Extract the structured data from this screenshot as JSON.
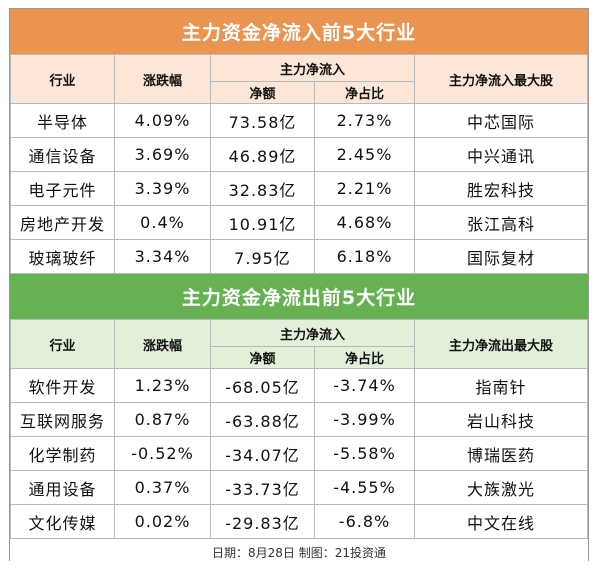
{
  "inflow": {
    "title": "主力资金净流入前5大行业",
    "headers": {
      "industry": "行业",
      "change": "涨跌幅",
      "main_flow": "主力净流入",
      "net_amount": "净额",
      "net_ratio": "净占比",
      "top_stock": "主力净流入最大股"
    },
    "rows": [
      {
        "industry": "半导体",
        "change": "4.09%",
        "net_amount": "73.58亿",
        "net_ratio": "2.73%",
        "top_stock": "中芯国际"
      },
      {
        "industry": "通信设备",
        "change": "3.69%",
        "net_amount": "46.89亿",
        "net_ratio": "2.45%",
        "top_stock": "中兴通讯"
      },
      {
        "industry": "电子元件",
        "change": "3.39%",
        "net_amount": "32.83亿",
        "net_ratio": "2.21%",
        "top_stock": "胜宏科技"
      },
      {
        "industry": "房地产开发",
        "change": "0.4%",
        "net_amount": "10.91亿",
        "net_ratio": "4.68%",
        "top_stock": "张江高科"
      },
      {
        "industry": "玻璃玻纤",
        "change": "3.34%",
        "net_amount": "7.95亿",
        "net_ratio": "6.18%",
        "top_stock": "国际复材"
      }
    ]
  },
  "outflow": {
    "title": "主力资金净流出前5大行业",
    "headers": {
      "industry": "行业",
      "change": "涨跌幅",
      "main_flow": "主力净流入",
      "net_amount": "净额",
      "net_ratio": "净占比",
      "top_stock": "主力净流出最大股"
    },
    "rows": [
      {
        "industry": "软件开发",
        "change": "1.23%",
        "net_amount": "-68.05亿",
        "net_ratio": "-3.74%",
        "top_stock": "指南针"
      },
      {
        "industry": "互联网服务",
        "change": "0.87%",
        "net_amount": "-63.88亿",
        "net_ratio": "-3.99%",
        "top_stock": "岩山科技"
      },
      {
        "industry": "化学制药",
        "change": "-0.52%",
        "net_amount": "-34.07亿",
        "net_ratio": "-5.58%",
        "top_stock": "博瑞医药"
      },
      {
        "industry": "通用设备",
        "change": "0.37%",
        "net_amount": "-33.73亿",
        "net_ratio": "-4.55%",
        "top_stock": "大族激光"
      },
      {
        "industry": "文化传媒",
        "change": "0.02%",
        "net_amount": "-29.83亿",
        "net_ratio": "-6.8%",
        "top_stock": "中文在线"
      }
    ]
  },
  "footer": "日期：8月28日 制图：21投资通",
  "colors": {
    "inflow_banner": "#ea9452",
    "inflow_header": "#fbe6d7",
    "outflow_banner": "#66b152",
    "outflow_header": "#e2f0da"
  }
}
